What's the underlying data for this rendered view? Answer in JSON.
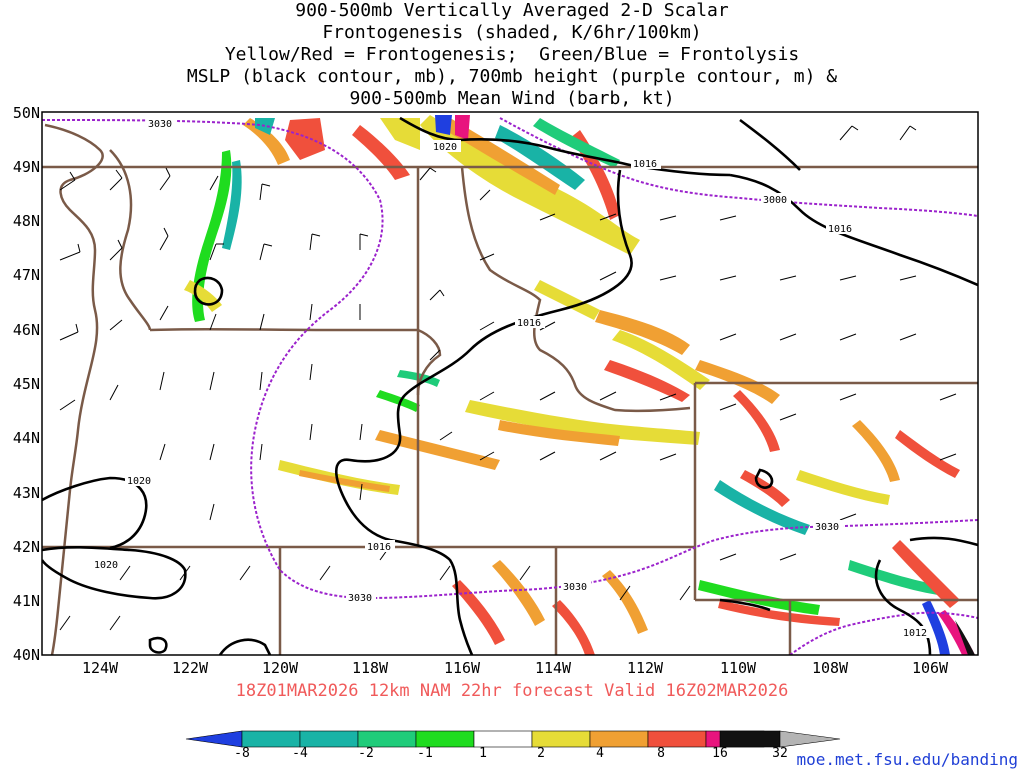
{
  "title_lines": [
    "900-500mb Vertically Averaged 2-D Scalar",
    "Frontogenesis (shaded, K/6hr/100km)",
    "Yellow/Red = Frontogenesis;  Green/Blue = Frontolysis",
    "MSLP (black contour, mb), 700mb height (purple contour, m) &",
    "900-500mb Mean Wind (barb, kt)"
  ],
  "lat_labels": [
    "50N",
    "49N",
    "48N",
    "47N",
    "46N",
    "45N",
    "44N",
    "43N",
    "42N",
    "41N",
    "40N"
  ],
  "lon_labels": [
    "124W",
    "122W",
    "120W",
    "118W",
    "116W",
    "114W",
    "112W",
    "110W",
    "108W",
    "106W"
  ],
  "valid_line": "18Z01MAR2026 12km NAM 22hr forecast Valid 16Z02MAR2026",
  "contour_labels": {
    "mslp": [
      "1020",
      "1016",
      "1016",
      "1016",
      "1020",
      "1020",
      "1016",
      "1012"
    ],
    "height700": [
      "3030",
      "3000",
      "3030",
      "3030",
      "3030"
    ]
  },
  "colorbar": {
    "labels": [
      "-8",
      "-4",
      "-2",
      "-1",
      "1",
      "2",
      "4",
      "8",
      "16",
      "32"
    ],
    "colors": [
      "#1f3fe0",
      "#19b3a6",
      "#1fcc7a",
      "#1fdc1f",
      "#ffffff",
      "#e6dc37",
      "#f0a033",
      "#f0503c",
      "#e8147e",
      "#111111"
    ],
    "under_color": "#1f3fe0",
    "over_color": "#b4b4b4"
  },
  "credit": "moe.met.fsu.edu/banding"
}
